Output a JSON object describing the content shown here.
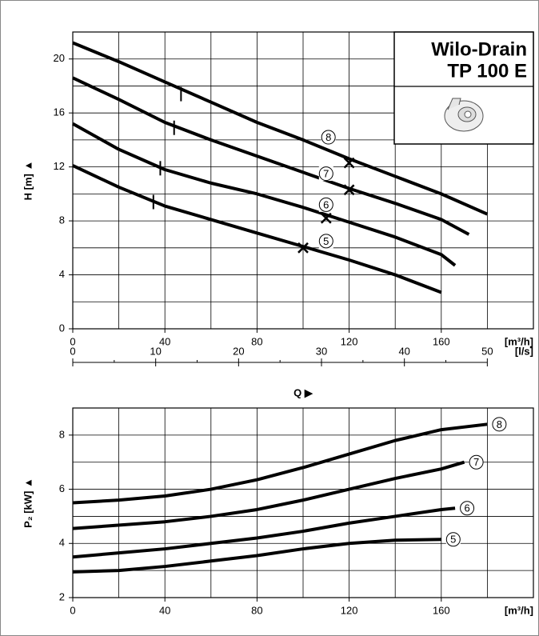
{
  "chart_data": [
    {
      "type": "line",
      "title": "Wilo-Drain",
      "subtitle": "TP 100 E",
      "ylabel": "H [m] ▲",
      "xunit": "[m³/h]",
      "x2unit": "[l/s]",
      "x2label": "Q ▶",
      "xlim": [
        0,
        200
      ],
      "ylim": [
        0,
        22
      ],
      "xticks": [
        0,
        40,
        80,
        120,
        160
      ],
      "yticks": [
        0,
        4,
        8,
        12,
        16,
        20
      ],
      "xgrid": [
        20,
        40,
        60,
        80,
        100,
        120,
        140,
        160,
        180
      ],
      "ygrid": [
        2,
        4,
        6,
        8,
        10,
        12,
        14,
        16,
        18,
        20
      ],
      "x2lim": [
        0,
        55.56
      ],
      "x2ticks": [
        0,
        10,
        20,
        30,
        40,
        50
      ],
      "x2minor": [
        5,
        15,
        25,
        35,
        45
      ],
      "color": "#000000",
      "series": [
        {
          "name": "8",
          "x": [
            0,
            20,
            40,
            60,
            80,
            100,
            120,
            140,
            160,
            180
          ],
          "values": [
            21.2,
            19.8,
            18.3,
            16.8,
            15.3,
            14.0,
            12.6,
            11.3,
            10.0,
            8.5
          ],
          "cross": [
            120,
            12.3
          ],
          "tick": [
            47,
            17.4
          ]
        },
        {
          "name": "7",
          "x": [
            0,
            20,
            40,
            60,
            80,
            100,
            120,
            140,
            160,
            172
          ],
          "values": [
            18.6,
            17.0,
            15.3,
            14.0,
            12.8,
            11.6,
            10.4,
            9.3,
            8.1,
            7.0
          ],
          "cross": [
            120,
            10.3
          ],
          "tick": [
            44,
            14.9
          ]
        },
        {
          "name": "6",
          "x": [
            0,
            20,
            40,
            60,
            80,
            100,
            120,
            140,
            160,
            166
          ],
          "values": [
            15.2,
            13.3,
            11.8,
            10.8,
            10.0,
            9.0,
            7.9,
            6.8,
            5.5,
            4.7
          ],
          "cross": [
            110,
            8.2
          ],
          "tick": [
            38,
            11.9
          ]
        },
        {
          "name": "5",
          "x": [
            0,
            20,
            40,
            60,
            80,
            100,
            120,
            140,
            160
          ],
          "values": [
            12.1,
            10.5,
            9.1,
            8.1,
            7.1,
            6.1,
            5.1,
            4.0,
            2.7
          ],
          "cross": [
            100,
            6.0
          ],
          "tick": [
            35,
            9.4
          ]
        }
      ]
    },
    {
      "type": "line",
      "ylabel": "P₂ [kW] ▲",
      "xunit": "[m³/h]",
      "xlim": [
        0,
        200
      ],
      "ylim": [
        2,
        9
      ],
      "xticks": [
        0,
        40,
        80,
        120,
        160
      ],
      "yticks": [
        2,
        4,
        6,
        8
      ],
      "xgrid": [
        20,
        40,
        60,
        80,
        100,
        120,
        140,
        160,
        180
      ],
      "ygrid": [
        3,
        4,
        5,
        6,
        7,
        8
      ],
      "color": "#000000",
      "series": [
        {
          "name": "8",
          "x": [
            0,
            20,
            40,
            60,
            80,
            100,
            120,
            140,
            160,
            180
          ],
          "values": [
            5.5,
            5.6,
            5.75,
            6.0,
            6.35,
            6.8,
            7.3,
            7.8,
            8.2,
            8.4
          ]
        },
        {
          "name": "7",
          "x": [
            0,
            40,
            60,
            80,
            100,
            120,
            140,
            160,
            170
          ],
          "values": [
            4.55,
            4.8,
            5.0,
            5.25,
            5.6,
            6.0,
            6.4,
            6.75,
            7.0
          ]
        },
        {
          "name": "6",
          "x": [
            0,
            20,
            40,
            60,
            80,
            100,
            120,
            140,
            160,
            166
          ],
          "values": [
            3.5,
            3.65,
            3.8,
            4.0,
            4.2,
            4.45,
            4.75,
            5.0,
            5.25,
            5.3
          ]
        },
        {
          "name": "5",
          "x": [
            0,
            20,
            40,
            60,
            80,
            100,
            120,
            140,
            160
          ],
          "values": [
            2.95,
            3.0,
            3.15,
            3.35,
            3.55,
            3.8,
            4.0,
            4.12,
            4.15
          ]
        }
      ]
    }
  ]
}
